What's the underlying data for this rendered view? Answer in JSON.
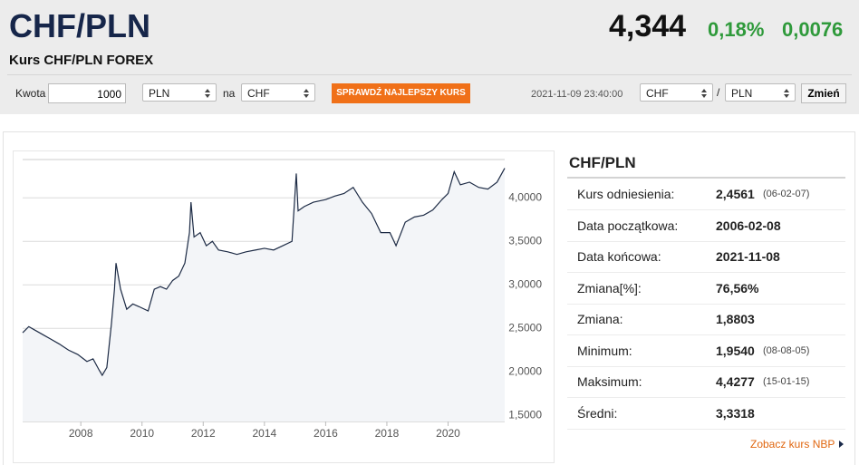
{
  "header": {
    "title": "CHF/PLN",
    "rate": "4,344",
    "change_pct": "0,18%",
    "change_abs": "0,0076",
    "subtitle": "Kurs CHF/PLN FOREX"
  },
  "toolbar": {
    "amount_label": "Kwota",
    "amount": "1000",
    "from": "PLN",
    "na": "na",
    "to": "CHF",
    "button": "SPRAWDŹ NAJLEPSZY KURS",
    "timestamp": "2021-11-09 23:40:00",
    "pair_from": "CHF",
    "separator": "/",
    "pair_to": "PLN",
    "submit": "Zmień"
  },
  "chart_data": {
    "type": "line",
    "x": [
      2006.1,
      2006.3,
      2006.5,
      2006.8,
      2007.0,
      2007.3,
      2007.6,
      2007.9,
      2008.2,
      2008.4,
      2008.6,
      2008.7,
      2008.85,
      2009.0,
      2009.1,
      2009.15,
      2009.3,
      2009.5,
      2009.7,
      2009.9,
      2010.2,
      2010.4,
      2010.6,
      2010.8,
      2011.0,
      2011.2,
      2011.4,
      2011.55,
      2011.6,
      2011.7,
      2011.9,
      2012.1,
      2012.3,
      2012.5,
      2012.8,
      2013.1,
      2013.4,
      2013.7,
      2014.0,
      2014.3,
      2014.6,
      2014.9,
      2015.04,
      2015.1,
      2015.3,
      2015.6,
      2016.0,
      2016.3,
      2016.6,
      2016.9,
      2017.2,
      2017.5,
      2017.8,
      2018.1,
      2018.3,
      2018.6,
      2018.9,
      2019.2,
      2019.5,
      2019.8,
      2020.0,
      2020.2,
      2020.4,
      2020.7,
      2021.0,
      2021.3,
      2021.6,
      2021.85
    ],
    "series": [
      {
        "color": "#1d2b45",
        "values": [
          2.45,
          2.52,
          2.48,
          2.42,
          2.38,
          2.32,
          2.25,
          2.2,
          2.12,
          2.15,
          2.02,
          1.96,
          2.05,
          2.55,
          2.95,
          3.25,
          2.95,
          2.72,
          2.78,
          2.75,
          2.7,
          2.95,
          2.98,
          2.95,
          3.05,
          3.1,
          3.25,
          3.6,
          3.95,
          3.55,
          3.6,
          3.45,
          3.5,
          3.4,
          3.38,
          3.35,
          3.38,
          3.4,
          3.42,
          3.4,
          3.45,
          3.5,
          4.28,
          3.85,
          3.9,
          3.95,
          3.98,
          4.02,
          4.05,
          4.12,
          3.95,
          3.82,
          3.6,
          3.6,
          3.45,
          3.72,
          3.78,
          3.8,
          3.86,
          3.98,
          4.05,
          4.3,
          4.15,
          4.18,
          4.12,
          4.1,
          4.18,
          4.34
        ]
      }
    ],
    "xlim": [
      2006.1,
      2021.85
    ],
    "xticks": [
      2008,
      2010,
      2012,
      2014,
      2016,
      2018,
      2020
    ],
    "ylim": [
      1.43,
      4.44
    ],
    "yticks": [
      {
        "value": 1.5,
        "label": "1,5000"
      },
      {
        "value": 2.0,
        "label": "2,0000"
      },
      {
        "value": 2.5,
        "label": "2,5000"
      },
      {
        "value": 3.0,
        "label": "3,0000"
      },
      {
        "value": 3.5,
        "label": "3,5000"
      },
      {
        "value": 4.0,
        "label": "4,0000"
      }
    ],
    "grid": true,
    "area_color": "#f3f5f8"
  },
  "stats": {
    "title": "CHF/PLN",
    "rows": [
      {
        "label": "Kurs odniesienia:",
        "value": "2,4561",
        "date": "(06-02-07)"
      },
      {
        "label": "Data początkowa:",
        "value": "2006-02-08"
      },
      {
        "label": "Data końcowa:",
        "value": "2021-11-08"
      },
      {
        "label": "Zmiana[%]:",
        "value": "76,56%"
      },
      {
        "label": "Zmiana:",
        "value": "1,8803"
      },
      {
        "label": "Minimum:",
        "value": "1,9540",
        "date": "(08-08-05)"
      },
      {
        "label": "Maksimum:",
        "value": "4,4277",
        "date": "(15-01-15)"
      },
      {
        "label": "Średni:",
        "value": "3,3318"
      }
    ],
    "link": "Zobacz kurs NBP"
  }
}
